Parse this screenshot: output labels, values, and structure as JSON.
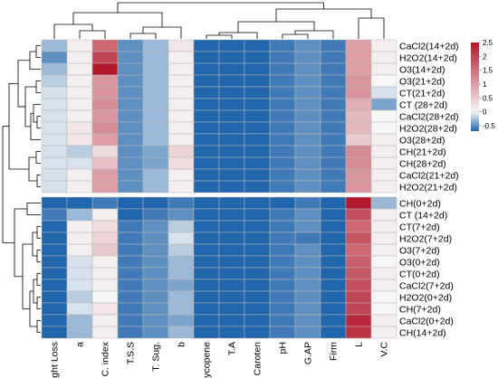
{
  "chart_data": {
    "type": "heatmap",
    "title": "",
    "columns": [
      "Weight Loss",
      "a",
      "C. index",
      "T.S.S",
      "T. Sug.",
      "b",
      "Lycopene",
      "T.A",
      "Caroten",
      "pH",
      "G.AP",
      "Firm",
      "L",
      "V.C"
    ],
    "rows": [
      "CaCl2(14+2d)",
      "H2O2(14+2d)",
      "O3(14+2d)",
      "O3(21+2d)",
      "CT(21+2d)",
      "CT (28+2d)",
      "CaCl2(28+2d)",
      "H2O2(28+2d)",
      "O3(28+2d)",
      "CH(21+2d)",
      "CH(28+2d)",
      "CaCl2(21+2d)",
      "H2O2(21+2d)",
      "CH(0+2d)",
      "CT (14+2d)",
      "CT(7+2d)",
      "H2O2(7+2d)",
      "O3(7+2d)",
      "O3(0+2d)",
      "CT(0+2d)",
      "CaCl2(7+2d)",
      "H2O2(0+2d)",
      "CH(7+2d)",
      "CaCl2(0+2d)",
      "CH(14+2d)"
    ],
    "values": [
      [
        -0.3,
        0.1,
        1.6,
        -0.5,
        -0.3,
        0.2,
        -0.7,
        -0.7,
        -0.7,
        -0.6,
        -0.5,
        -0.6,
        1.0,
        0.1
      ],
      [
        -0.5,
        0.1,
        2.0,
        -0.5,
        -0.3,
        0.1,
        -0.7,
        -0.7,
        -0.7,
        -0.6,
        -0.5,
        -0.6,
        1.0,
        0.1
      ],
      [
        -0.3,
        0.1,
        2.5,
        -0.5,
        -0.3,
        0.1,
        -0.7,
        -0.7,
        -0.7,
        -0.6,
        -0.5,
        -0.6,
        1.0,
        0.1
      ],
      [
        -0.2,
        0.1,
        1.1,
        -0.5,
        -0.3,
        0.1,
        -0.7,
        -0.7,
        -0.7,
        -0.6,
        -0.5,
        -0.6,
        1.1,
        0.0
      ],
      [
        -0.1,
        0.1,
        1.1,
        -0.5,
        -0.3,
        0.1,
        -0.7,
        -0.7,
        -0.7,
        -0.6,
        -0.5,
        -0.6,
        1.1,
        -0.1
      ],
      [
        -0.1,
        0.1,
        1.2,
        -0.5,
        -0.3,
        0.1,
        -0.7,
        -0.7,
        -0.7,
        -0.6,
        -0.5,
        -0.6,
        0.8,
        -0.4
      ],
      [
        -0.1,
        0.1,
        1.1,
        -0.5,
        -0.3,
        0.1,
        -0.7,
        -0.7,
        -0.7,
        -0.6,
        -0.5,
        -0.6,
        0.7,
        0.0
      ],
      [
        -0.1,
        0.2,
        1.2,
        -0.5,
        -0.3,
        0.1,
        -0.7,
        -0.7,
        -0.7,
        -0.6,
        -0.5,
        -0.6,
        0.7,
        0.0
      ],
      [
        -0.1,
        0.2,
        1.0,
        -0.5,
        -0.3,
        0.1,
        -0.7,
        -0.7,
        -0.7,
        -0.6,
        -0.5,
        -0.6,
        0.5,
        0.1
      ],
      [
        -0.1,
        -0.2,
        0.3,
        -0.5,
        -0.4,
        0.4,
        -0.7,
        -0.7,
        -0.7,
        -0.6,
        -0.5,
        -0.6,
        1.2,
        0.1
      ],
      [
        -0.1,
        -0.1,
        0.6,
        -0.5,
        -0.4,
        0.3,
        -0.7,
        -0.7,
        -0.7,
        -0.6,
        -0.5,
        -0.6,
        1.2,
        0.1
      ],
      [
        -0.1,
        0.1,
        1.0,
        -0.5,
        -0.3,
        0.1,
        -0.7,
        -0.7,
        -0.7,
        -0.6,
        -0.5,
        -0.6,
        1.1,
        0.1
      ],
      [
        -0.1,
        0.1,
        1.0,
        -0.5,
        -0.3,
        0.1,
        -0.7,
        -0.7,
        -0.7,
        -0.6,
        -0.5,
        -0.6,
        1.1,
        0.1
      ],
      [
        -0.7,
        -0.7,
        -0.6,
        -0.7,
        -0.7,
        -0.6,
        -0.7,
        -0.7,
        -0.7,
        -0.7,
        -0.6,
        -0.7,
        2.5,
        -0.3
      ],
      [
        -0.6,
        -0.3,
        0.1,
        -0.7,
        -0.6,
        -0.5,
        -0.7,
        -0.7,
        -0.7,
        -0.6,
        -0.5,
        -0.7,
        1.9,
        0.1
      ],
      [
        -0.7,
        0.1,
        0.3,
        -0.6,
        -0.5,
        -0.2,
        -0.7,
        -0.7,
        -0.7,
        -0.6,
        -0.5,
        -0.7,
        1.6,
        0.1
      ],
      [
        -0.7,
        0.1,
        0.4,
        -0.6,
        -0.5,
        -0.1,
        -0.7,
        -0.7,
        -0.7,
        -0.6,
        -0.6,
        -0.7,
        1.8,
        0.1
      ],
      [
        -0.7,
        0.1,
        0.5,
        -0.6,
        -0.5,
        -0.2,
        -0.7,
        -0.7,
        -0.7,
        -0.6,
        -0.5,
        -0.7,
        1.6,
        0.1
      ],
      [
        -0.7,
        -0.1,
        0.1,
        -0.6,
        -0.5,
        -0.3,
        -0.7,
        -0.7,
        -0.7,
        -0.6,
        -0.5,
        -0.7,
        1.7,
        0.0
      ],
      [
        -0.7,
        -0.1,
        0.1,
        -0.6,
        -0.5,
        -0.3,
        -0.7,
        -0.7,
        -0.7,
        -0.6,
        -0.5,
        -0.7,
        1.8,
        0.1
      ],
      [
        -0.7,
        -0.1,
        0.1,
        -0.6,
        -0.5,
        -0.4,
        -0.7,
        -0.7,
        -0.7,
        -0.6,
        -0.5,
        -0.7,
        1.9,
        0.1
      ],
      [
        -0.7,
        -0.2,
        0.0,
        -0.6,
        -0.5,
        -0.3,
        -0.7,
        -0.7,
        -0.7,
        -0.6,
        -0.5,
        -0.7,
        2.0,
        0.0
      ],
      [
        -0.7,
        -0.1,
        0.2,
        -0.6,
        -0.5,
        -0.3,
        -0.7,
        -0.7,
        -0.7,
        -0.6,
        -0.5,
        -0.7,
        2.0,
        0.0
      ],
      [
        -0.7,
        -0.3,
        0.1,
        -0.6,
        -0.5,
        -0.4,
        -0.7,
        -0.7,
        -0.7,
        -0.6,
        -0.5,
        -0.7,
        2.3,
        0.1
      ],
      [
        -0.7,
        -0.3,
        0.1,
        -0.6,
        -0.5,
        -0.3,
        -0.7,
        -0.7,
        -0.7,
        -0.6,
        -0.5,
        -0.7,
        2.2,
        0.1
      ]
    ],
    "color_scale": {
      "low": "#2166ac",
      "mid": "#f7f7f7",
      "high": "#b2182b",
      "low_value": -0.7,
      "mid_value": 0,
      "high_value": 2.5
    },
    "legend": {
      "position": "right",
      "ticks": [
        2.5,
        2,
        1.5,
        1,
        0.5,
        0,
        -0.5
      ],
      "tick_labels": [
        "2.5",
        "2",
        "1.5",
        "1",
        "0.5",
        "0",
        "-0.5"
      ]
    },
    "row_split_after": 13,
    "row_dendrogram": true,
    "column_dendrogram": true
  }
}
